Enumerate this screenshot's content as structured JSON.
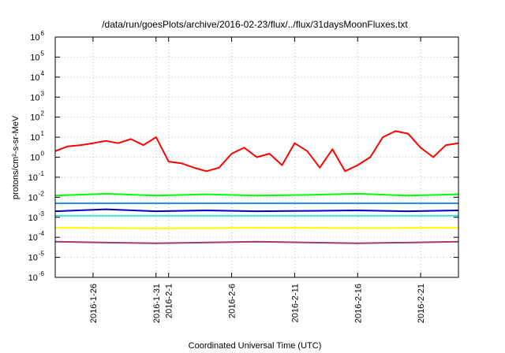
{
  "chart_data": {
    "type": "line",
    "title": "/data/run/goesPlots/archive/2016-02-23/flux/../flux/31daysMoonFluxes.txt",
    "xlabel": "Coordinated Universal Time (UTC)",
    "ylabel": "protons/cm²-s-sr-MeV",
    "y_scale": "log",
    "ylim_exponent": [
      -6,
      6
    ],
    "xlim": [
      "2016-01-23",
      "2016-02-24"
    ],
    "grid": true,
    "x_ticks": [
      {
        "date": "2016-01-26",
        "label": "2016-1-26"
      },
      {
        "date": "2016-01-31",
        "label": "2016-1-31"
      },
      {
        "date": "2016-02-01",
        "label": "2016-2-1"
      },
      {
        "date": "2016-02-06",
        "label": "2016-2-6"
      },
      {
        "date": "2016-02-11",
        "label": "2016-2-11"
      },
      {
        "date": "2016-02-16",
        "label": "2016-2-16"
      },
      {
        "date": "2016-02-21",
        "label": "2016-2-21"
      }
    ],
    "y_ticks": [
      {
        "exp": -6,
        "label": "10",
        "sup": "-6"
      },
      {
        "exp": -5,
        "label": "10",
        "sup": "-5"
      },
      {
        "exp": -4,
        "label": "10",
        "sup": "-4"
      },
      {
        "exp": -3,
        "label": "10",
        "sup": "-3"
      },
      {
        "exp": -2,
        "label": "10",
        "sup": "-2"
      },
      {
        "exp": -1,
        "label": "10",
        "sup": "-1"
      },
      {
        "exp": 0,
        "label": "10",
        "sup": "0"
      },
      {
        "exp": 1,
        "label": "10",
        "sup": "1"
      },
      {
        "exp": 2,
        "label": "10",
        "sup": "2"
      },
      {
        "exp": 3,
        "label": "10",
        "sup": "3"
      },
      {
        "exp": 4,
        "label": "10",
        "sup": "4"
      },
      {
        "exp": 5,
        "label": "10",
        "sup": "5"
      },
      {
        "exp": 6,
        "label": "10",
        "sup": "6"
      }
    ],
    "series": [
      {
        "color": "#ff0000",
        "x": [
          "2016-01-23",
          "2016-01-24",
          "2016-01-25",
          "2016-01-26",
          "2016-01-27",
          "2016-01-28",
          "2016-01-29",
          "2016-01-30",
          "2016-01-31",
          "2016-02-01",
          "2016-02-02",
          "2016-02-03",
          "2016-02-04",
          "2016-02-05",
          "2016-02-06",
          "2016-02-07",
          "2016-02-08",
          "2016-02-09",
          "2016-02-10",
          "2016-02-11",
          "2016-02-12",
          "2016-02-13",
          "2016-02-14",
          "2016-02-15",
          "2016-02-16",
          "2016-02-17",
          "2016-02-18",
          "2016-02-19",
          "2016-02-20",
          "2016-02-21",
          "2016-02-22",
          "2016-02-23",
          "2016-02-24"
        ],
        "y": [
          2.0,
          3.5,
          4.0,
          5.0,
          6.5,
          5.0,
          8.0,
          4.0,
          10.0,
          0.6,
          0.5,
          0.3,
          0.2,
          0.3,
          1.5,
          3.0,
          1.0,
          1.5,
          0.4,
          5.0,
          2.0,
          0.3,
          2.5,
          0.2,
          0.4,
          1.0,
          10.0,
          20.0,
          15.0,
          3.0,
          1.0,
          4.0,
          5.0
        ]
      },
      {
        "color": "#00ff00",
        "x": [
          "2016-01-23",
          "2016-01-27",
          "2016-01-31",
          "2016-02-04",
          "2016-02-08",
          "2016-02-12",
          "2016-02-16",
          "2016-02-20",
          "2016-02-24"
        ],
        "y": [
          0.012,
          0.015,
          0.012,
          0.014,
          0.012,
          0.013,
          0.015,
          0.012,
          0.014
        ]
      },
      {
        "color": "#1e90ff",
        "x": [
          "2016-01-23",
          "2016-01-27",
          "2016-01-31",
          "2016-02-04",
          "2016-02-08",
          "2016-02-12",
          "2016-02-16",
          "2016-02-20",
          "2016-02-24"
        ],
        "y": [
          0.005,
          0.005,
          0.005,
          0.005,
          0.005,
          0.005,
          0.005,
          0.005,
          0.005
        ]
      },
      {
        "color": "#0000cd",
        "x": [
          "2016-01-23",
          "2016-01-27",
          "2016-01-31",
          "2016-02-04",
          "2016-02-08",
          "2016-02-12",
          "2016-02-16",
          "2016-02-20",
          "2016-02-24"
        ],
        "y": [
          0.002,
          0.0025,
          0.002,
          0.0022,
          0.002,
          0.0021,
          0.0022,
          0.002,
          0.0022
        ]
      },
      {
        "color": "#40e0d0",
        "x": [
          "2016-01-23",
          "2016-02-24"
        ],
        "y": [
          0.0012,
          0.0012
        ]
      },
      {
        "color": "#ffff00",
        "x": [
          "2016-01-23",
          "2016-01-31",
          "2016-02-08",
          "2016-02-16",
          "2016-02-24"
        ],
        "y": [
          0.0003,
          0.00028,
          0.0003,
          0.00029,
          0.0003
        ]
      },
      {
        "color": "#9b3b6e",
        "x": [
          "2016-01-23",
          "2016-01-31",
          "2016-02-08",
          "2016-02-16",
          "2016-02-24"
        ],
        "y": [
          6e-05,
          5e-05,
          6e-05,
          5e-05,
          6e-05
        ]
      }
    ]
  }
}
